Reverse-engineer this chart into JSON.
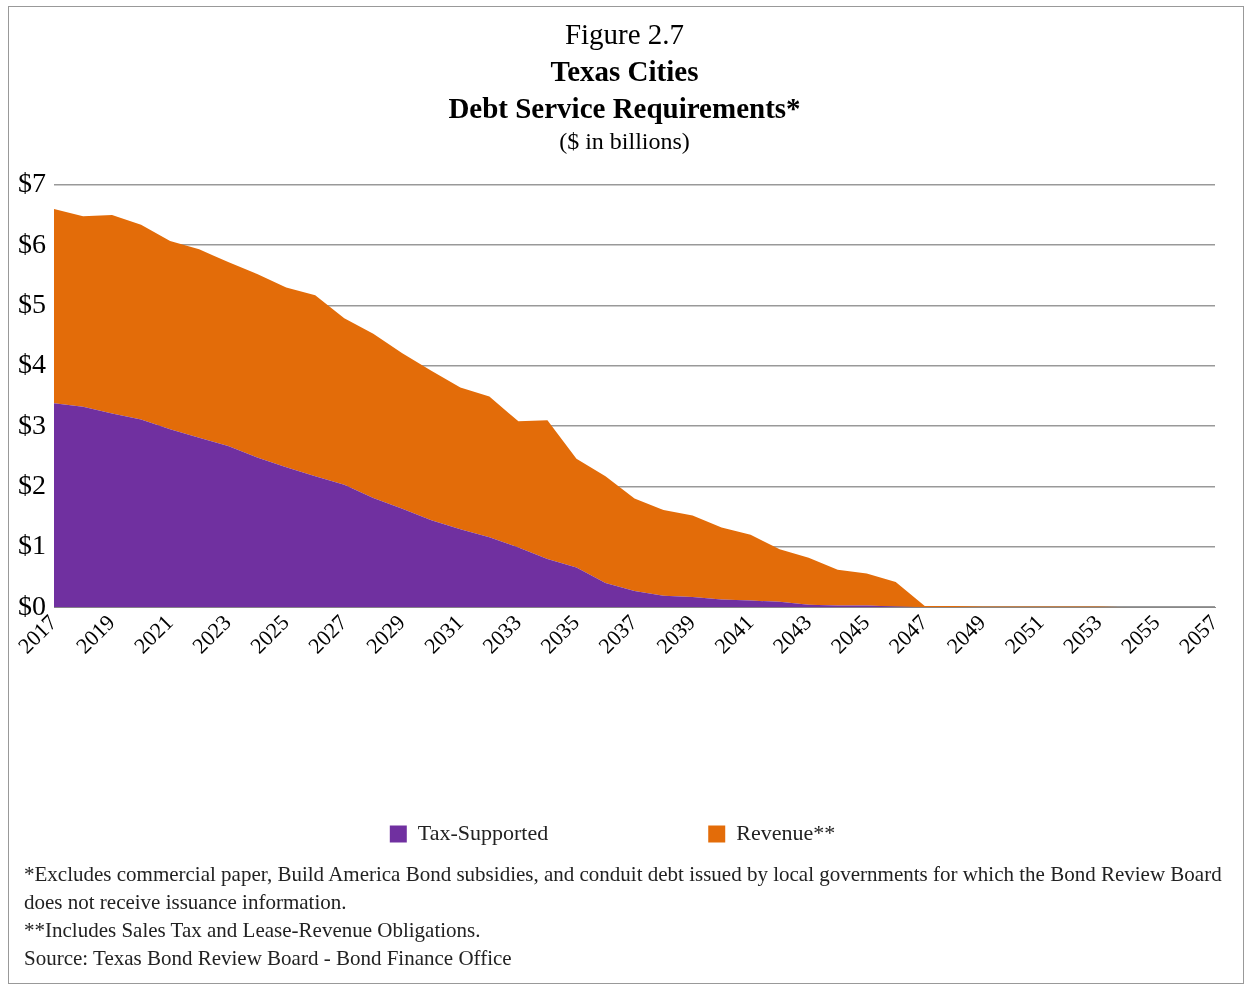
{
  "chart_data": {
    "type": "area",
    "stacked": true,
    "title": "Figure 2.7\nTexas Cities\nDebt Service Requirements*",
    "subtitle": "($ in billions)",
    "categories": [
      "2017",
      null,
      "2019",
      null,
      "2021",
      null,
      "2023",
      null,
      "2025",
      null,
      "2027",
      null,
      "2029",
      null,
      "2031",
      null,
      "2033",
      null,
      "2035",
      null,
      "2037",
      null,
      "2039",
      null,
      "2041",
      null,
      "2043",
      null,
      "2045",
      null,
      "2047",
      null,
      "2049",
      null,
      "2051",
      null,
      "2053",
      null,
      "2055",
      null,
      "2057"
    ],
    "series": [
      {
        "name": "Tax-Supported",
        "color": "#7030a0",
        "values": [
          3.38,
          3.32,
          3.21,
          3.11,
          2.95,
          2.81,
          2.67,
          2.48,
          2.32,
          2.17,
          2.03,
          1.81,
          1.63,
          1.44,
          1.29,
          1.16,
          0.99,
          0.8,
          0.66,
          0.4,
          0.27,
          0.19,
          0.17,
          0.13,
          0.11,
          0.09,
          0.04,
          0.03,
          0.03,
          0.01,
          0,
          0,
          0,
          0,
          0,
          0,
          0,
          0,
          0,
          0,
          0
        ]
      },
      {
        "name": "Revenue**",
        "color": "#e36c09",
        "values": [
          3.22,
          3.16,
          3.29,
          3.23,
          3.12,
          3.12,
          3.05,
          3.04,
          2.98,
          3.0,
          2.76,
          2.72,
          2.58,
          2.48,
          2.35,
          2.33,
          2.09,
          2.3,
          1.8,
          1.77,
          1.53,
          1.42,
          1.35,
          1.19,
          1.09,
          0.87,
          0.78,
          0.59,
          0.53,
          0.41,
          0.02,
          0.02,
          0.01,
          0.01,
          0.01,
          0.01,
          0.01,
          0,
          0,
          0,
          0
        ]
      }
    ],
    "ylim": [
      0,
      7
    ],
    "yticks": [
      {
        "value": 0,
        "label": "$0"
      },
      {
        "value": 1,
        "label": "$1"
      },
      {
        "value": 2,
        "label": "$2"
      },
      {
        "value": 3,
        "label": "$3"
      },
      {
        "value": 4,
        "label": "$4"
      },
      {
        "value": 5,
        "label": "$5"
      },
      {
        "value": 6,
        "label": "$6"
      },
      {
        "value": 7,
        "label": "$7"
      }
    ],
    "grid": "y",
    "legend": "bottom",
    "annotations": [
      "*Excludes commercial paper, Build America Bond subsidies, and conduit debt issued by local governments for which the Bond Review Board does not receive issuance information.",
      "**Includes Sales Tax and Lease-Revenue Obligations.",
      "Source: Texas Bond Review Board - Bond Finance Office"
    ]
  }
}
